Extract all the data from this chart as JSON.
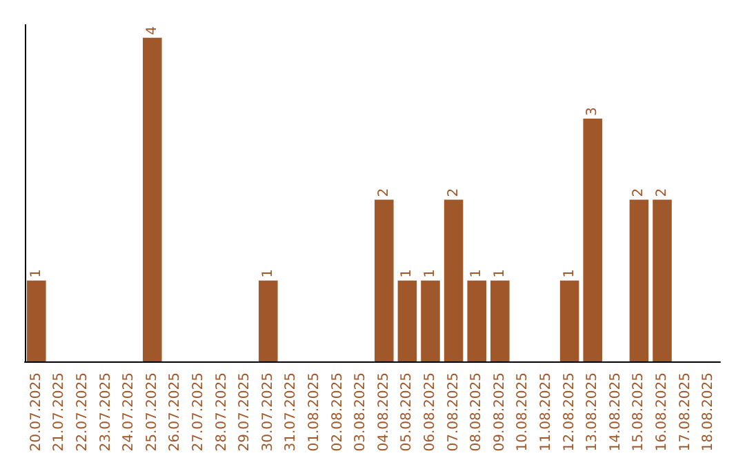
{
  "chart_data": {
    "type": "bar",
    "categories": [
      "20.07.2025",
      "21.07.2025",
      "22.07.2025",
      "23.07.2025",
      "24.07.2025",
      "25.07.2025",
      "26.07.2025",
      "27.07.2025",
      "28.07.2025",
      "29.07.2025",
      "30.07.2025",
      "31.07.2025",
      "01.08.2025",
      "02.08.2025",
      "03.08.2025",
      "04.08.2025",
      "05.08.2025",
      "06.08.2025",
      "07.08.2025",
      "08.08.2025",
      "09.08.2025",
      "10.08.2025",
      "11.08.2025",
      "12.08.2025",
      "13.08.2025",
      "14.08.2025",
      "15.08.2025",
      "16.08.2025",
      "17.08.2025",
      "18.08.2025"
    ],
    "values": [
      1,
      0,
      0,
      0,
      0,
      4,
      0,
      0,
      0,
      0,
      1,
      0,
      0,
      0,
      0,
      2,
      1,
      1,
      2,
      1,
      1,
      0,
      0,
      1,
      3,
      0,
      2,
      2,
      0,
      0
    ],
    "value_labels": [
      "1",
      null,
      null,
      null,
      null,
      "4",
      null,
      null,
      null,
      null,
      "1",
      null,
      null,
      null,
      null,
      "2",
      "1",
      "1",
      "2",
      "1",
      "1",
      null,
      null,
      "1",
      "3",
      null,
      "2",
      "2",
      null,
      null
    ],
    "color": "#a0582a"
  }
}
